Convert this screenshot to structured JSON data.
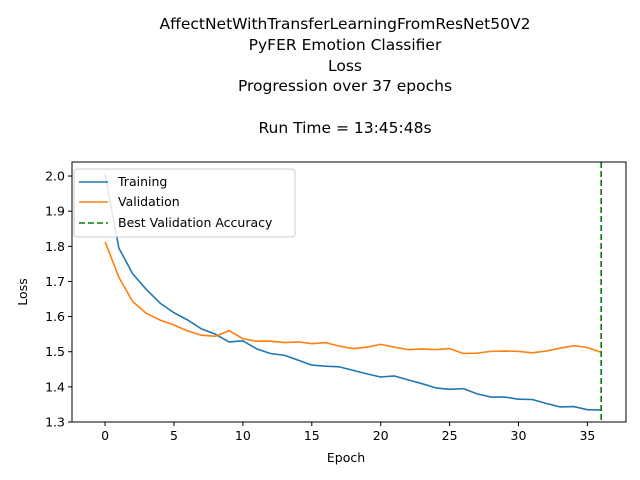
{
  "chart_data": {
    "type": "line",
    "title_lines": [
      "AffectNetWithTransferLearningFromResNet50V2",
      "PyFER Emotion Classifier",
      "Loss",
      "Progression over 37 epochs",
      "",
      "Run Time = 13:45:48s"
    ],
    "xlabel": "Epoch",
    "ylabel": "Loss",
    "xlim": [
      -2.4,
      37.8
    ],
    "ylim": [
      1.3,
      2.04
    ],
    "xticks": [
      0,
      5,
      10,
      15,
      20,
      25,
      30,
      35
    ],
    "xtick_labels": [
      "0",
      "5",
      "10",
      "15",
      "20",
      "25",
      "30",
      "35"
    ],
    "yticks": [
      1.3,
      1.4,
      1.5,
      1.6,
      1.7,
      1.8,
      1.9,
      2.0
    ],
    "ytick_labels": [
      "1.3",
      "1.4",
      "1.5",
      "1.6",
      "1.7",
      "1.8",
      "1.9",
      "2.0"
    ],
    "grid": false,
    "legend_position": "top-left",
    "series": [
      {
        "name": "Training",
        "color": "#1f77b4",
        "style": "solid",
        "x": [
          0,
          1,
          2,
          3,
          4,
          5,
          6,
          7,
          8,
          9,
          10,
          11,
          12,
          13,
          14,
          15,
          16,
          17,
          18,
          19,
          20,
          21,
          22,
          23,
          24,
          25,
          26,
          27,
          28,
          29,
          30,
          31,
          32,
          33,
          34,
          35,
          36
        ],
        "values": [
          2.005,
          1.795,
          1.722,
          1.677,
          1.638,
          1.611,
          1.59,
          1.565,
          1.55,
          1.528,
          1.531,
          1.508,
          1.495,
          1.49,
          1.476,
          1.462,
          1.459,
          1.457,
          1.447,
          1.437,
          1.428,
          1.431,
          1.42,
          1.409,
          1.397,
          1.393,
          1.395,
          1.38,
          1.371,
          1.371,
          1.365,
          1.364,
          1.353,
          1.343,
          1.344,
          1.335,
          1.334
        ]
      },
      {
        "name": "Validation",
        "color": "#ff7f0e",
        "style": "solid",
        "x": [
          0,
          1,
          2,
          3,
          4,
          5,
          6,
          7,
          8,
          9,
          10,
          11,
          12,
          13,
          14,
          15,
          16,
          17,
          18,
          19,
          20,
          21,
          22,
          23,
          24,
          25,
          26,
          27,
          28,
          29,
          30,
          31,
          32,
          33,
          34,
          35,
          36
        ],
        "values": [
          1.813,
          1.712,
          1.643,
          1.609,
          1.59,
          1.576,
          1.559,
          1.547,
          1.544,
          1.56,
          1.537,
          1.53,
          1.53,
          1.526,
          1.528,
          1.523,
          1.526,
          1.516,
          1.509,
          1.513,
          1.521,
          1.513,
          1.506,
          1.508,
          1.506,
          1.509,
          1.495,
          1.496,
          1.501,
          1.502,
          1.501,
          1.497,
          1.502,
          1.51,
          1.517,
          1.512,
          1.498
        ]
      },
      {
        "name": "Best Validation Accuracy",
        "color": "#008000",
        "style": "dashed",
        "type": "vline",
        "x": 36
      }
    ]
  }
}
